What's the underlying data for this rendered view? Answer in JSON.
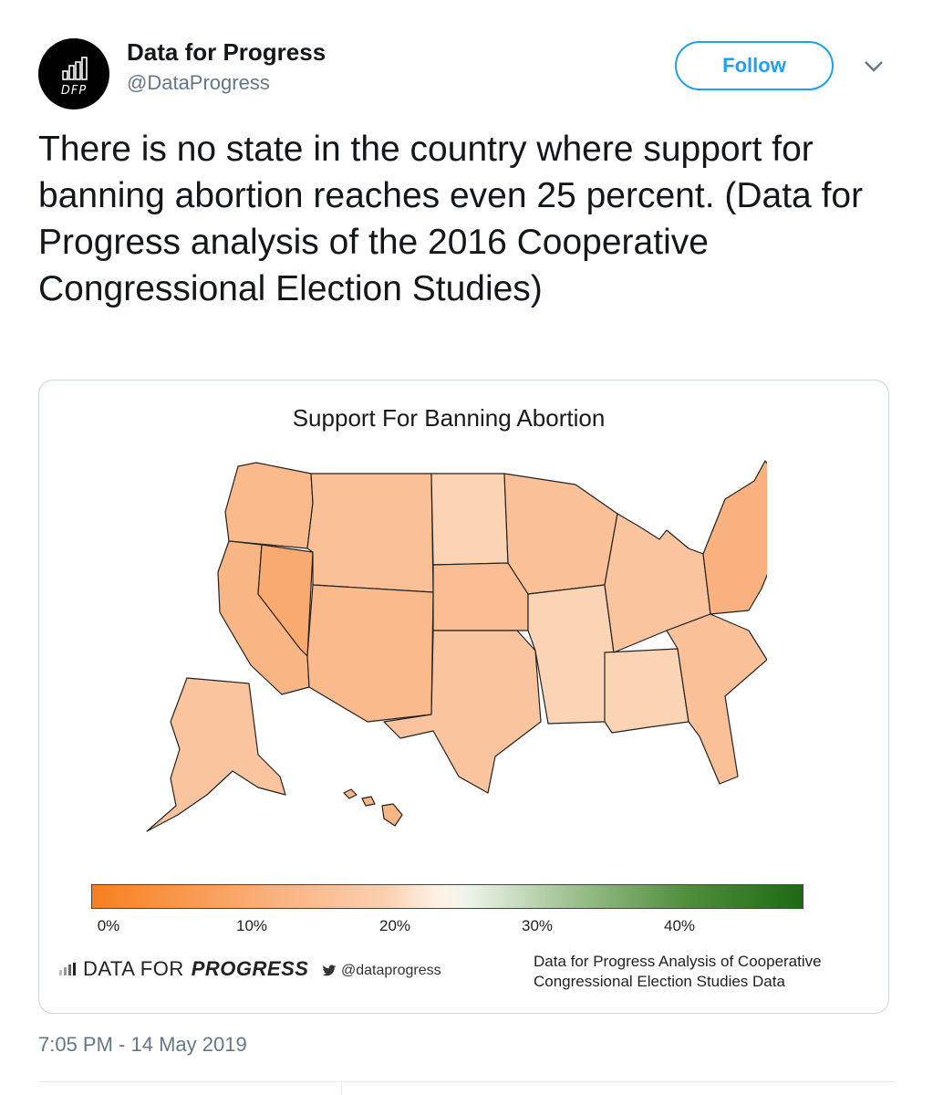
{
  "tweet": {
    "author_name": "Data for Progress",
    "handle": "@DataProgress",
    "avatar_text": "DFP",
    "follow_label": "Follow",
    "text": "There is no state in the country where support for banning abortion reaches even 25 percent. (Data for Progress analysis of the 2016 Cooperative Congressional Election Studies)",
    "timestamp": "7:05 PM - 14 May 2019"
  },
  "colors": {
    "accent": "#1da1f2",
    "secondary_text": "#657786",
    "low_support": "#f77f1f",
    "mid_support": "#fbcfae",
    "high_support": "#1c6b12"
  },
  "chart_data": {
    "type": "choropleth",
    "title": "Support For Banning Abortion",
    "legend_ticks": [
      "0%",
      "10%",
      "20%",
      "30%",
      "40%"
    ],
    "legend_range": [
      0,
      50
    ],
    "regions": [
      {
        "name": "Pacific Northwest",
        "value": 15
      },
      {
        "name": "California",
        "value": 14
      },
      {
        "name": "Nevada",
        "value": 11
      },
      {
        "name": "Mountain West",
        "value": 17
      },
      {
        "name": "Southwest",
        "value": 15
      },
      {
        "name": "Northern Plains",
        "value": 21
      },
      {
        "name": "Central Plains",
        "value": 16
      },
      {
        "name": "Texas",
        "value": 18
      },
      {
        "name": "Upper Midwest",
        "value": 17
      },
      {
        "name": "South Central",
        "value": 21
      },
      {
        "name": "Deep South",
        "value": 21
      },
      {
        "name": "Great Lakes",
        "value": 18
      },
      {
        "name": "Southeast",
        "value": 17
      },
      {
        "name": "Northeast",
        "value": 13
      },
      {
        "name": "Alaska",
        "value": 18
      },
      {
        "name": "Hawaii",
        "value": 14
      }
    ],
    "footer": {
      "logo_left": "DATA FOR",
      "logo_right": "PROGRESS",
      "twitter": "@dataprogress",
      "source": "Data for Progress Analysis of Cooperative Congressional Election Studies Data"
    }
  }
}
